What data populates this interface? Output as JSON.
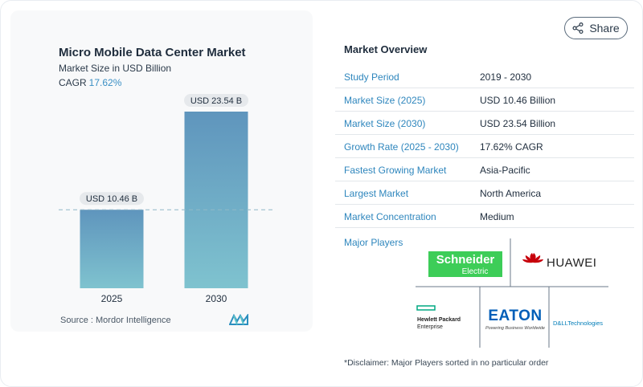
{
  "share": {
    "label": "Share",
    "icon": "share-icon"
  },
  "chart": {
    "title": "Micro Mobile Data Center Market",
    "subtitle": "Market Size in USD Billion",
    "cagr_label": "CAGR",
    "cagr_value": "17.62%",
    "source": "Source :  Mordor Intelligence"
  },
  "chart_data": {
    "type": "bar",
    "categories": [
      "2025",
      "2030"
    ],
    "values": [
      10.46,
      23.54
    ],
    "value_labels": [
      "USD 10.46 B",
      "USD 23.54 B"
    ],
    "title": "Micro Mobile Data Center Market",
    "subtitle": "Market Size in USD Billion",
    "ylim": [
      0,
      23.54
    ],
    "grid": false,
    "reference_line": 10.46,
    "colors": {
      "bar_top": "#5f95bd",
      "bar_bottom": "#7fc3cf"
    }
  },
  "overview": {
    "title": "Market Overview",
    "rows": [
      {
        "label": "Study Period",
        "value": "2019 - 2030"
      },
      {
        "label": "Market Size (2025)",
        "value": "USD 10.46 Billion"
      },
      {
        "label": "Market Size (2030)",
        "value": "USD 23.54 Billion"
      },
      {
        "label": "Growth Rate (2025 - 2030)",
        "value": "17.62% CAGR"
      },
      {
        "label": "Fastest Growing Market",
        "value": "Asia-Pacific"
      },
      {
        "label": "Largest Market",
        "value": "North America"
      },
      {
        "label": "Market Concentration",
        "value": "Medium"
      }
    ]
  },
  "players": {
    "label": "Major Players",
    "logos": [
      {
        "name": "Schneider Electric",
        "line1": "Schneider",
        "line2": "Electric",
        "color": "#3dcd58"
      },
      {
        "name": "Huawei",
        "text": "HUAWEI",
        "color": "#c7000b"
      },
      {
        "name": "Hewlett Packard Enterprise",
        "line1": "Hewlett Packard",
        "line2": "Enterprise",
        "color": "#01a982"
      },
      {
        "name": "Eaton",
        "text": "EATON",
        "tagline": "Powering Business Worldwide",
        "color": "#005eb8"
      },
      {
        "name": "Dell Technologies",
        "text": "D&LLTechnologies",
        "color": "#007db8"
      }
    ]
  },
  "disclaimer": "*Disclaimer: Major Players sorted in no particular order"
}
